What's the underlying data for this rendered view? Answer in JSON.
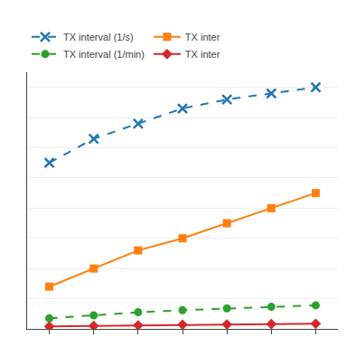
{
  "chart_data": {
    "type": "line",
    "x": [
      1,
      2,
      3,
      4,
      5,
      6,
      7
    ],
    "series": [
      {
        "name": "TX interval (1/s)",
        "values": [
          55,
          63,
          68,
          73,
          76,
          78,
          80
        ],
        "line_style": "dashed",
        "marker": "x"
      },
      {
        "name": "TX inter",
        "values": [
          14,
          20,
          26,
          30,
          35,
          40,
          45
        ],
        "line_style": "solid",
        "marker": "square"
      },
      {
        "name": "TX interval (1/min)",
        "values": [
          3.5,
          4.5,
          5.5,
          6.2,
          6.8,
          7.3,
          7.8
        ],
        "line_style": "dashed",
        "marker": "circle"
      },
      {
        "name": "TX inter",
        "values": [
          0.8,
          1.0,
          1.2,
          1.4,
          1.5,
          1.6,
          1.7
        ],
        "line_style": "solid",
        "marker": "diamond"
      }
    ],
    "xlim": [
      0.5,
      7.5
    ],
    "xticks": [
      1,
      2,
      3,
      4,
      5,
      6,
      7
    ],
    "ylim": [
      0,
      85
    ],
    "yticks": [
      0,
      10,
      20,
      30,
      40,
      50,
      60,
      70,
      80
    ],
    "grid": "y",
    "tick_labels": false,
    "legend": "top"
  }
}
